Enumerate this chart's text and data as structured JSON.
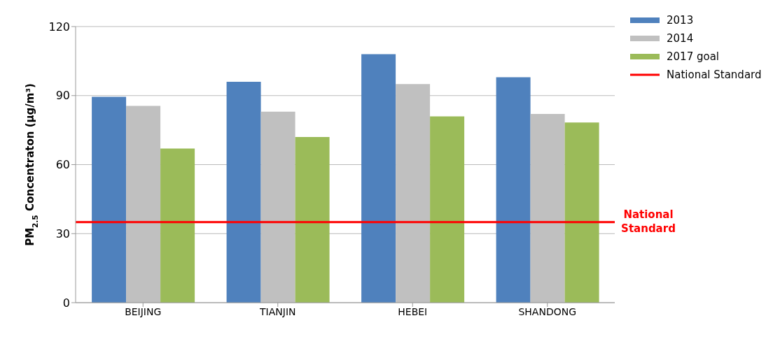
{
  "chart_data": {
    "type": "bar",
    "ylabel": "PM$_{2.5}$ Concentraton (µg/m³)",
    "categories": [
      "BEIJING",
      "TIANJIN",
      "HEBEI",
      "SHANDONG"
    ],
    "series": [
      {
        "name": "2013",
        "color": "#4f81bd",
        "values": [
          89.5,
          96,
          108,
          98
        ]
      },
      {
        "name": "2014",
        "color": "#c0c0c0",
        "values": [
          85.5,
          83,
          95,
          82
        ]
      },
      {
        "name": "2017 goal",
        "color": "#9bbb59",
        "values": [
          67,
          72,
          81,
          78.3
        ]
      }
    ],
    "ylim": [
      0,
      120
    ],
    "yticks": [
      0,
      30,
      60,
      90,
      120
    ],
    "grid": "y",
    "legend": "top right",
    "ref_lines": [
      {
        "axis": "y",
        "value": 35,
        "label": "National Standard",
        "color": "#ff0000"
      }
    ]
  }
}
